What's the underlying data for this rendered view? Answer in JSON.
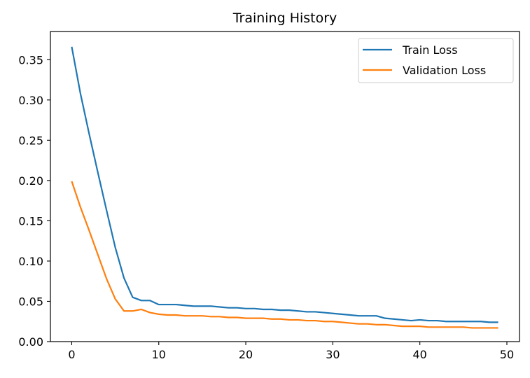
{
  "chart_data": {
    "type": "line",
    "title": "Training History",
    "xlabel": "",
    "ylabel": "",
    "xlim": [
      -2.45,
      51.45
    ],
    "ylim": [
      0,
      0.385
    ],
    "xticks": [
      0,
      10,
      20,
      30,
      40,
      50
    ],
    "xtick_labels": [
      "0",
      "10",
      "20",
      "30",
      "40",
      "50"
    ],
    "yticks": [
      0.0,
      0.05,
      0.1,
      0.15,
      0.2,
      0.25,
      0.3,
      0.35
    ],
    "ytick_labels": [
      "0.00",
      "0.05",
      "0.10",
      "0.15",
      "0.20",
      "0.25",
      "0.30",
      "0.35"
    ],
    "grid": false,
    "legend_position": "top-right",
    "x": [
      0,
      1,
      2,
      3,
      4,
      5,
      6,
      7,
      8,
      9,
      10,
      11,
      12,
      13,
      14,
      15,
      16,
      17,
      18,
      19,
      20,
      21,
      22,
      23,
      24,
      25,
      26,
      27,
      28,
      29,
      30,
      31,
      32,
      33,
      34,
      35,
      36,
      37,
      38,
      39,
      40,
      41,
      42,
      43,
      44,
      45,
      46,
      47,
      48,
      49
    ],
    "series": [
      {
        "name": "Train Loss",
        "color": "#1f77b4",
        "values": [
          0.366,
          0.308,
          0.258,
          0.21,
          0.163,
          0.117,
          0.079,
          0.055,
          0.051,
          0.051,
          0.046,
          0.046,
          0.046,
          0.045,
          0.044,
          0.044,
          0.044,
          0.043,
          0.042,
          0.042,
          0.041,
          0.041,
          0.04,
          0.04,
          0.039,
          0.039,
          0.038,
          0.037,
          0.037,
          0.036,
          0.035,
          0.034,
          0.033,
          0.032,
          0.032,
          0.032,
          0.029,
          0.028,
          0.027,
          0.026,
          0.027,
          0.026,
          0.026,
          0.025,
          0.025,
          0.025,
          0.025,
          0.025,
          0.024,
          0.024
        ]
      },
      {
        "name": "Validation Loss",
        "color": "#ff7f0e",
        "values": [
          0.199,
          0.167,
          0.138,
          0.108,
          0.078,
          0.053,
          0.038,
          0.038,
          0.04,
          0.036,
          0.034,
          0.033,
          0.033,
          0.032,
          0.032,
          0.032,
          0.031,
          0.031,
          0.03,
          0.03,
          0.029,
          0.029,
          0.029,
          0.028,
          0.028,
          0.027,
          0.027,
          0.026,
          0.026,
          0.025,
          0.025,
          0.024,
          0.023,
          0.022,
          0.022,
          0.021,
          0.021,
          0.02,
          0.019,
          0.019,
          0.019,
          0.018,
          0.018,
          0.018,
          0.018,
          0.018,
          0.017,
          0.017,
          0.017,
          0.017
        ]
      }
    ]
  }
}
